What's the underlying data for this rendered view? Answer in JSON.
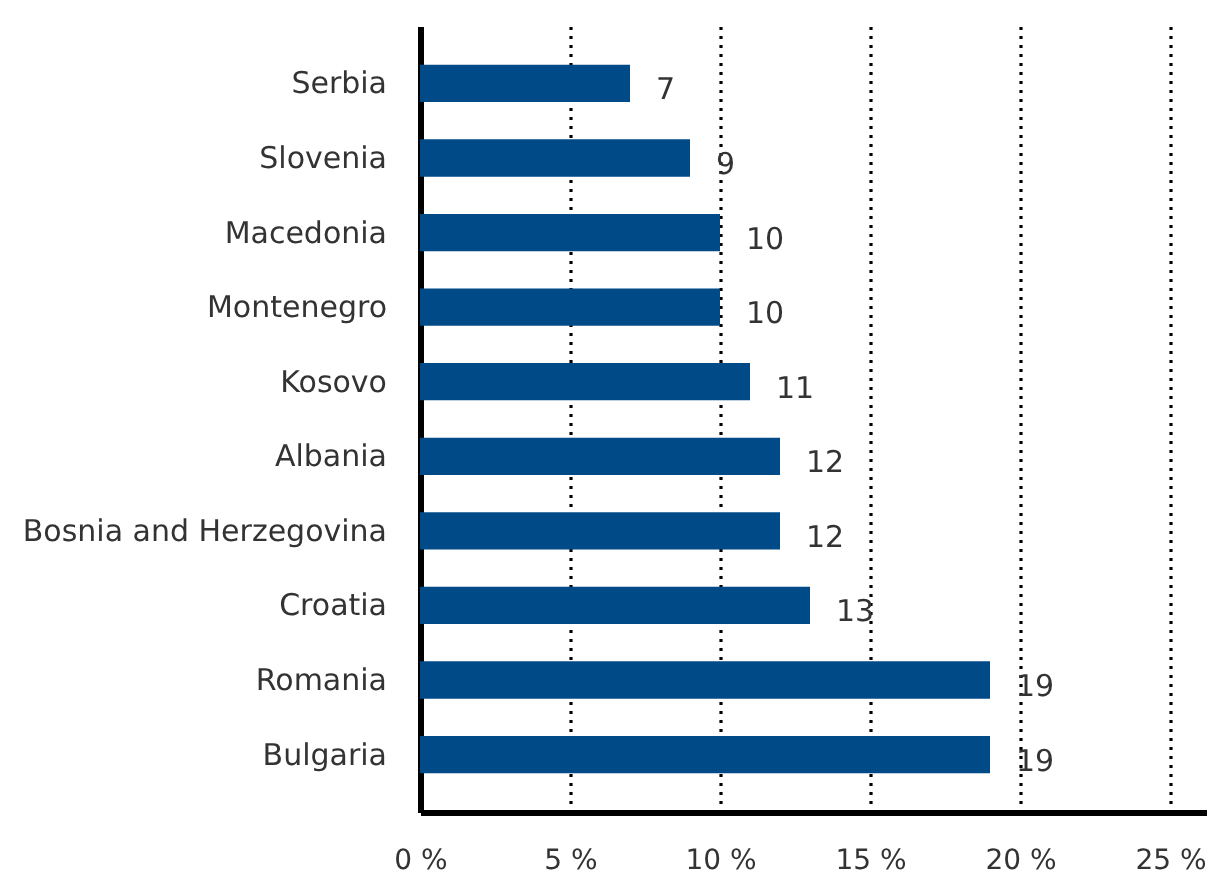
{
  "chart_data": {
    "type": "bar",
    "orientation": "horizontal",
    "categories": [
      "Serbia",
      "Slovenia",
      "Macedonia",
      "Montenegro",
      "Kosovo",
      "Albania",
      "Bosnia and Herzegovina",
      "Croatia",
      "Romania",
      "Bulgaria"
    ],
    "values": [
      7,
      9,
      10,
      10,
      11,
      12,
      12,
      13,
      19,
      19
    ],
    "color": "#004a87",
    "xlim": [
      0,
      26.2
    ],
    "xticks": [
      {
        "value": 0,
        "label": "0 %"
      },
      {
        "value": 5,
        "label": "5 %"
      },
      {
        "value": 10,
        "label": "10 %"
      },
      {
        "value": 15,
        "label": "15 %"
      },
      {
        "value": 20,
        "label": "20 %"
      },
      {
        "value": 25,
        "label": "25 %"
      }
    ],
    "grid": "x",
    "data_labels": true
  }
}
